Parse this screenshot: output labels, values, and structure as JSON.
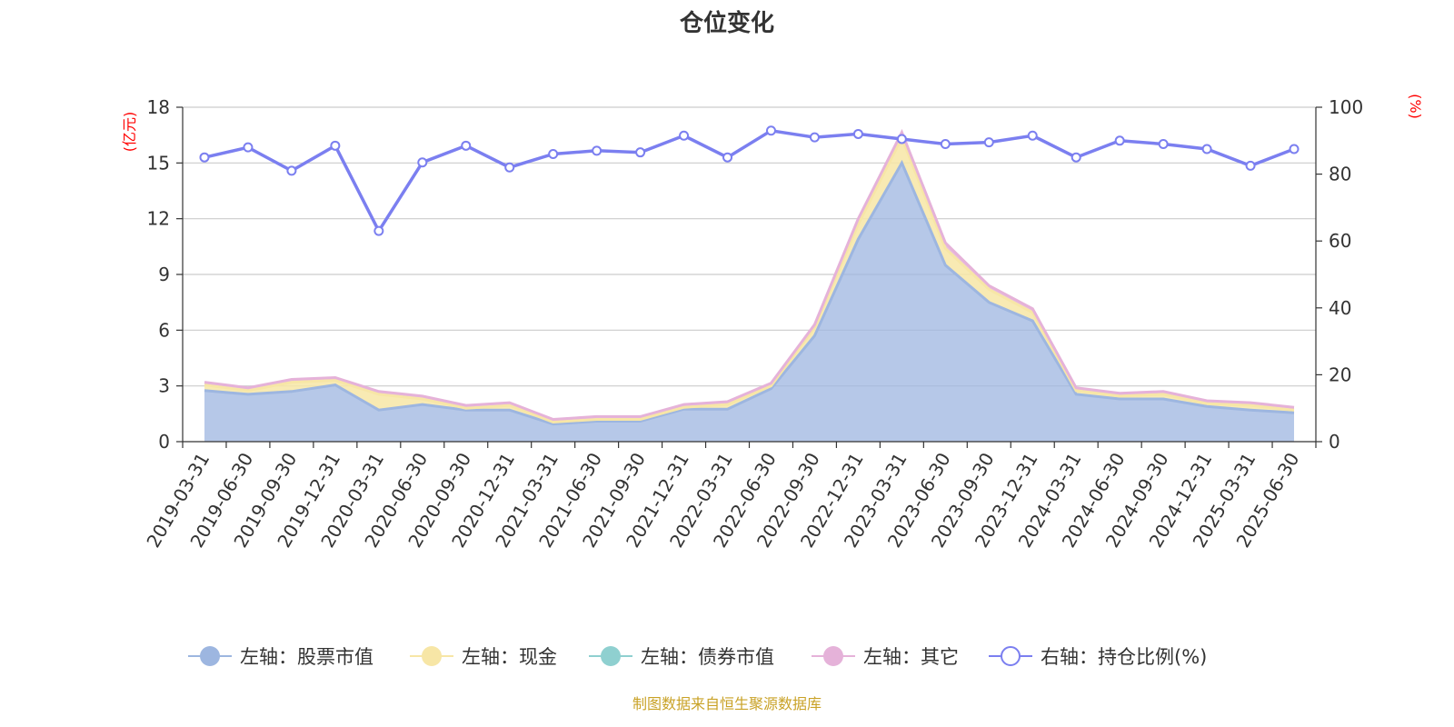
{
  "chart_data": {
    "type": "area",
    "title": "仓位变化",
    "left_axis": {
      "unit": "(亿元)",
      "ylim": [
        0,
        18
      ],
      "ticks": [
        "0",
        "3",
        "6",
        "9",
        "12",
        "15",
        "18"
      ]
    },
    "right_axis": {
      "unit": "(%)",
      "ylim": [
        0,
        100
      ],
      "ticks": [
        "0",
        "20",
        "40",
        "60",
        "80",
        "100"
      ]
    },
    "categories": [
      "2019-03-31",
      "2019-06-30",
      "2019-09-30",
      "2019-12-31",
      "2020-03-31",
      "2020-06-30",
      "2020-09-30",
      "2020-12-31",
      "2021-03-31",
      "2021-06-30",
      "2021-09-30",
      "2021-12-31",
      "2022-03-31",
      "2022-06-30",
      "2022-09-30",
      "2022-12-31",
      "2023-03-31",
      "2023-06-30",
      "2023-09-30",
      "2023-12-31",
      "2024-03-31",
      "2024-06-30",
      "2024-09-30",
      "2024-12-31",
      "2025-03-31",
      "2025-06-30"
    ],
    "series": [
      {
        "name": "左轴：股票市值",
        "axis": "left",
        "stack": true,
        "color": "#9db6e0",
        "values": [
          2.75,
          2.55,
          2.7,
          3.05,
          1.7,
          2.0,
          1.7,
          1.7,
          0.95,
          1.1,
          1.1,
          1.75,
          1.75,
          2.85,
          5.7,
          10.9,
          15.0,
          9.5,
          7.5,
          6.5,
          2.55,
          2.3,
          2.3,
          1.9,
          1.7,
          1.55
        ]
      },
      {
        "name": "左轴：现金",
        "axis": "left",
        "stack": true,
        "color": "#f7e6a6",
        "values": [
          0.3,
          0.2,
          0.5,
          0.25,
          0.85,
          0.3,
          0.1,
          0.25,
          0.1,
          0.1,
          0.1,
          0.1,
          0.25,
          0.15,
          0.45,
          0.8,
          1.35,
          0.9,
          0.7,
          0.45,
          0.2,
          0.15,
          0.25,
          0.15,
          0.25,
          0.15
        ]
      },
      {
        "name": "左轴：债券市值",
        "axis": "left",
        "stack": true,
        "color": "#8fd0d0",
        "values": [
          0,
          0,
          0,
          0,
          0,
          0,
          0,
          0,
          0,
          0,
          0,
          0,
          0,
          0,
          0,
          0,
          0,
          0,
          0,
          0,
          0,
          0,
          0,
          0,
          0,
          0
        ]
      },
      {
        "name": "左轴：其它",
        "axis": "left",
        "stack": true,
        "color": "#e5b2d9",
        "values": [
          0.15,
          0.15,
          0.15,
          0.15,
          0.15,
          0.15,
          0.15,
          0.15,
          0.15,
          0.15,
          0.15,
          0.15,
          0.15,
          0.15,
          0.15,
          0.3,
          0.3,
          0.3,
          0.2,
          0.2,
          0.15,
          0.15,
          0.15,
          0.15,
          0.15,
          0.15
        ]
      },
      {
        "name": "右轴：持仓比例(%)",
        "axis": "right",
        "type": "line",
        "color": "#7b7ff0",
        "values": [
          85,
          88,
          81,
          88.5,
          63,
          83.5,
          88.5,
          82,
          86,
          87,
          86.5,
          91.5,
          85,
          93,
          91,
          92,
          90.5,
          89,
          89.5,
          91.5,
          85,
          90,
          89,
          87.5,
          82.5,
          87.5
        ]
      }
    ],
    "grid": true,
    "legend_position": "bottom",
    "source": "制图数据来自恒生聚源数据库"
  }
}
